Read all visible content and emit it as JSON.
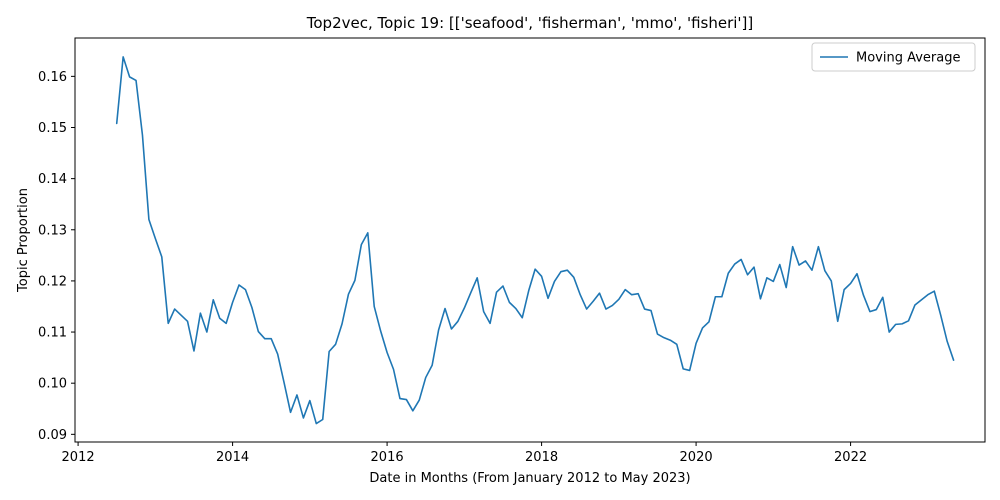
{
  "chart_data": {
    "type": "line",
    "title": "Top2vec, Topic 19: [['seafood', 'fisherman', 'mmo', 'fisheri']]",
    "xlabel": "Date in Months (From January 2012 to May 2023)",
    "ylabel": "Topic Proportion",
    "xlim": [
      2011.96,
      2023.74
    ],
    "ylim": [
      0.0885,
      0.1675
    ],
    "x_ticks": [
      2012,
      2014,
      2016,
      2018,
      2020,
      2022
    ],
    "x_tick_labels": [
      "2012",
      "2014",
      "2016",
      "2018",
      "2020",
      "2022"
    ],
    "y_ticks": [
      0.09,
      0.1,
      0.11,
      0.12,
      0.13,
      0.14,
      0.15,
      0.16
    ],
    "y_tick_labels": [
      "0.09",
      "0.10",
      "0.11",
      "0.12",
      "0.13",
      "0.14",
      "0.15",
      "0.16"
    ],
    "grid": false,
    "legend_position": "top-right",
    "colors": {
      "line": "#1f77b4",
      "axis": "#000000"
    },
    "series": [
      {
        "name": "Moving Average",
        "x": [
          "2012-07",
          "2012-08",
          "2012-09",
          "2012-10",
          "2012-11",
          "2012-12",
          "2013-01",
          "2013-02",
          "2013-03",
          "2013-04",
          "2013-05",
          "2013-06",
          "2013-07",
          "2013-08",
          "2013-09",
          "2013-10",
          "2013-11",
          "2013-12",
          "2014-01",
          "2014-02",
          "2014-03",
          "2014-04",
          "2014-05",
          "2014-06",
          "2014-07",
          "2014-08",
          "2014-09",
          "2014-10",
          "2014-11",
          "2014-12",
          "2015-01",
          "2015-02",
          "2015-03",
          "2015-04",
          "2015-05",
          "2015-06",
          "2015-07",
          "2015-08",
          "2015-09",
          "2015-10",
          "2015-11",
          "2015-12",
          "2016-01",
          "2016-02",
          "2016-03",
          "2016-04",
          "2016-05",
          "2016-06",
          "2016-07",
          "2016-08",
          "2016-09",
          "2016-10",
          "2016-11",
          "2016-12",
          "2017-01",
          "2017-02",
          "2017-03",
          "2017-04",
          "2017-05",
          "2017-06",
          "2017-07",
          "2017-08",
          "2017-09",
          "2017-10",
          "2017-11",
          "2017-12",
          "2018-01",
          "2018-02",
          "2018-03",
          "2018-04",
          "2018-05",
          "2018-06",
          "2018-07",
          "2018-08",
          "2018-09",
          "2018-10",
          "2018-11",
          "2018-12",
          "2019-01",
          "2019-02",
          "2019-03",
          "2019-04",
          "2019-05",
          "2019-06",
          "2019-07",
          "2019-08",
          "2019-09",
          "2019-10",
          "2019-11",
          "2019-12",
          "2020-01",
          "2020-02",
          "2020-03",
          "2020-04",
          "2020-05",
          "2020-06",
          "2020-07",
          "2020-08",
          "2020-09",
          "2020-10",
          "2020-11",
          "2020-12",
          "2021-01",
          "2021-02",
          "2021-03",
          "2021-04",
          "2021-05",
          "2021-06",
          "2021-07",
          "2021-08",
          "2021-09",
          "2021-10",
          "2021-11",
          "2021-12",
          "2022-01",
          "2022-02",
          "2022-03",
          "2022-04",
          "2022-05",
          "2022-06",
          "2022-07",
          "2022-08",
          "2022-09",
          "2022-10",
          "2022-11",
          "2022-12",
          "2023-01",
          "2023-02",
          "2023-03",
          "2023-04",
          "2023-05"
        ],
        "values": [
          0.1508,
          0.1638,
          0.1599,
          0.1592,
          0.1485,
          0.132,
          0.1283,
          0.1247,
          0.1117,
          0.1145,
          0.1133,
          0.1121,
          0.1063,
          0.1137,
          0.11,
          0.1163,
          0.1127,
          0.1117,
          0.1158,
          0.1192,
          0.1183,
          0.1148,
          0.1101,
          0.1087,
          0.1087,
          0.1057,
          0.1001,
          0.0943,
          0.0977,
          0.0932,
          0.0966,
          0.0921,
          0.0929,
          0.1062,
          0.1076,
          0.1116,
          0.1174,
          0.1201,
          0.1271,
          0.1294,
          0.115,
          0.1102,
          0.106,
          0.1027,
          0.097,
          0.0968,
          0.0946,
          0.0967,
          0.1011,
          0.1035,
          0.1104,
          0.1146,
          0.1106,
          0.1121,
          0.1147,
          0.1177,
          0.1206,
          0.114,
          0.1117,
          0.1178,
          0.119,
          0.1158,
          0.1146,
          0.1128,
          0.1181,
          0.1223,
          0.1209,
          0.1166,
          0.1199,
          0.1218,
          0.1221,
          0.1207,
          0.1173,
          0.1145,
          0.116,
          0.1176,
          0.1145,
          0.1152,
          0.1164,
          0.1183,
          0.1173,
          0.1175,
          0.1145,
          0.1142,
          0.1096,
          0.1089,
          0.1084,
          0.1076,
          0.1028,
          0.1025,
          0.1078,
          0.1108,
          0.112,
          0.1169,
          0.1169,
          0.1215,
          0.1233,
          0.1242,
          0.1212,
          0.1227,
          0.1165,
          0.1206,
          0.1199,
          0.1232,
          0.1187,
          0.1267,
          0.1231,
          0.1239,
          0.1221,
          0.1267,
          0.122,
          0.12,
          0.1121,
          0.1183,
          0.1195,
          0.1214,
          0.1172,
          0.114,
          0.1144,
          0.1168,
          0.11,
          0.1115,
          0.1116,
          0.1122,
          0.1153,
          0.1163,
          0.1173,
          0.118,
          0.1133,
          0.1082,
          0.1045
        ]
      }
    ]
  }
}
